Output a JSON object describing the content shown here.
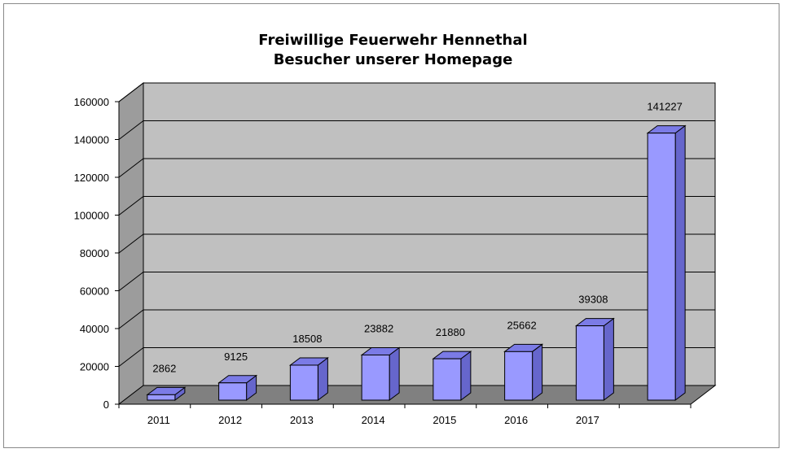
{
  "chart_data": {
    "type": "bar",
    "title_line1": "Freiwillige Feuerwehr Hennethal",
    "title_line2": "Besucher unserer Homepage",
    "categories": [
      "2011",
      "2012",
      "2013",
      "2014",
      "2015",
      "2016",
      "2017",
      ""
    ],
    "values": [
      2862,
      9125,
      18508,
      23882,
      21880,
      25662,
      39308,
      141227
    ],
    "value_labels": [
      "2862",
      "9125",
      "18508",
      "23882",
      "21880",
      "25662",
      "39308",
      "141227"
    ],
    "y_ticks": [
      "0",
      "20000",
      "40000",
      "60000",
      "80000",
      "100000",
      "120000",
      "140000",
      "160000"
    ],
    "ylim": [
      0,
      160000
    ],
    "xlabel": "",
    "ylabel": "",
    "grid": true,
    "legend": "none",
    "colors": {
      "bar_front": "#9999ff",
      "bar_side": "#6666cc",
      "bar_top": "#7b7be6",
      "wall": "#c0c0c0",
      "wall_side": "#9c9c9c",
      "floor": "#808080"
    }
  }
}
